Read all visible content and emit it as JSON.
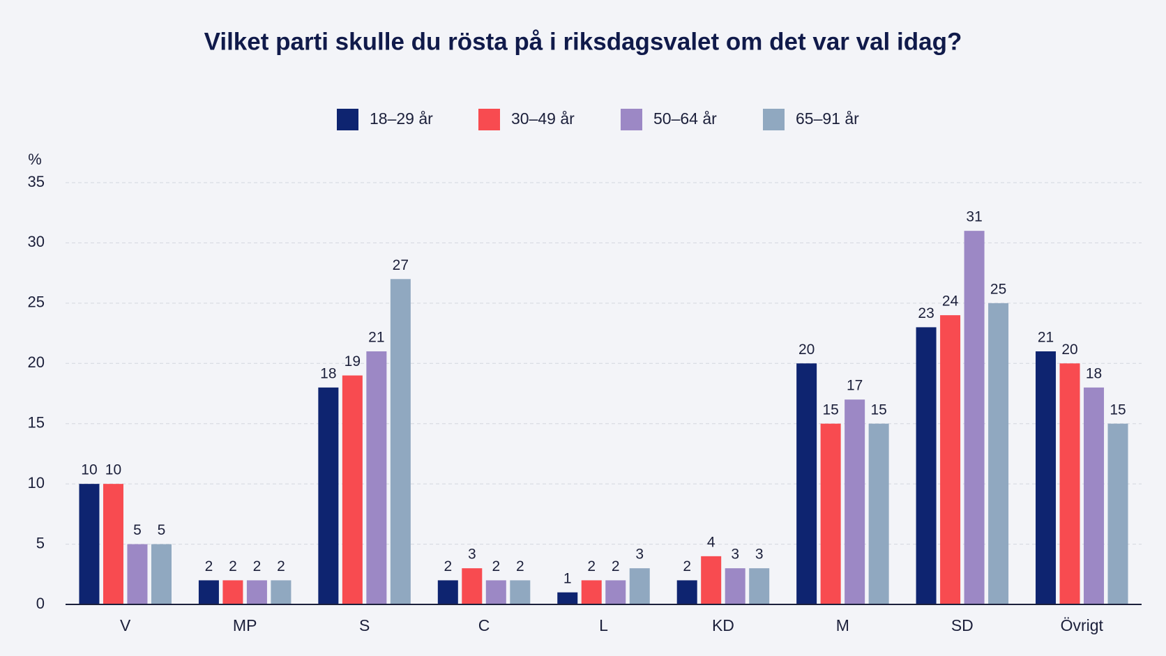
{
  "chart_data": {
    "type": "bar",
    "title": "Vilket parti skulle du rösta på i riksdagsvalet om det var val idag?",
    "y_unit": "%",
    "categories": [
      "V",
      "MP",
      "S",
      "C",
      "L",
      "KD",
      "M",
      "SD",
      "Övrigt"
    ],
    "series": [
      {
        "name": "18–29 år",
        "color": "#0e2470",
        "values": [
          10,
          2,
          18,
          2,
          1,
          2,
          20,
          23,
          21
        ]
      },
      {
        "name": "30–49 år",
        "color": "#f84b50",
        "values": [
          10,
          2,
          19,
          3,
          2,
          4,
          15,
          24,
          20
        ]
      },
      {
        "name": "50–64 år",
        "color": "#9c88c5",
        "values": [
          5,
          2,
          21,
          2,
          2,
          3,
          17,
          31,
          18
        ]
      },
      {
        "name": "65–91 år",
        "color": "#90a8c0",
        "values": [
          5,
          2,
          27,
          2,
          3,
          3,
          15,
          25,
          15
        ]
      }
    ],
    "ylim": [
      0,
      35
    ],
    "yticks": [
      0,
      5,
      10,
      15,
      20,
      25,
      30,
      35
    ],
    "grid": true
  }
}
